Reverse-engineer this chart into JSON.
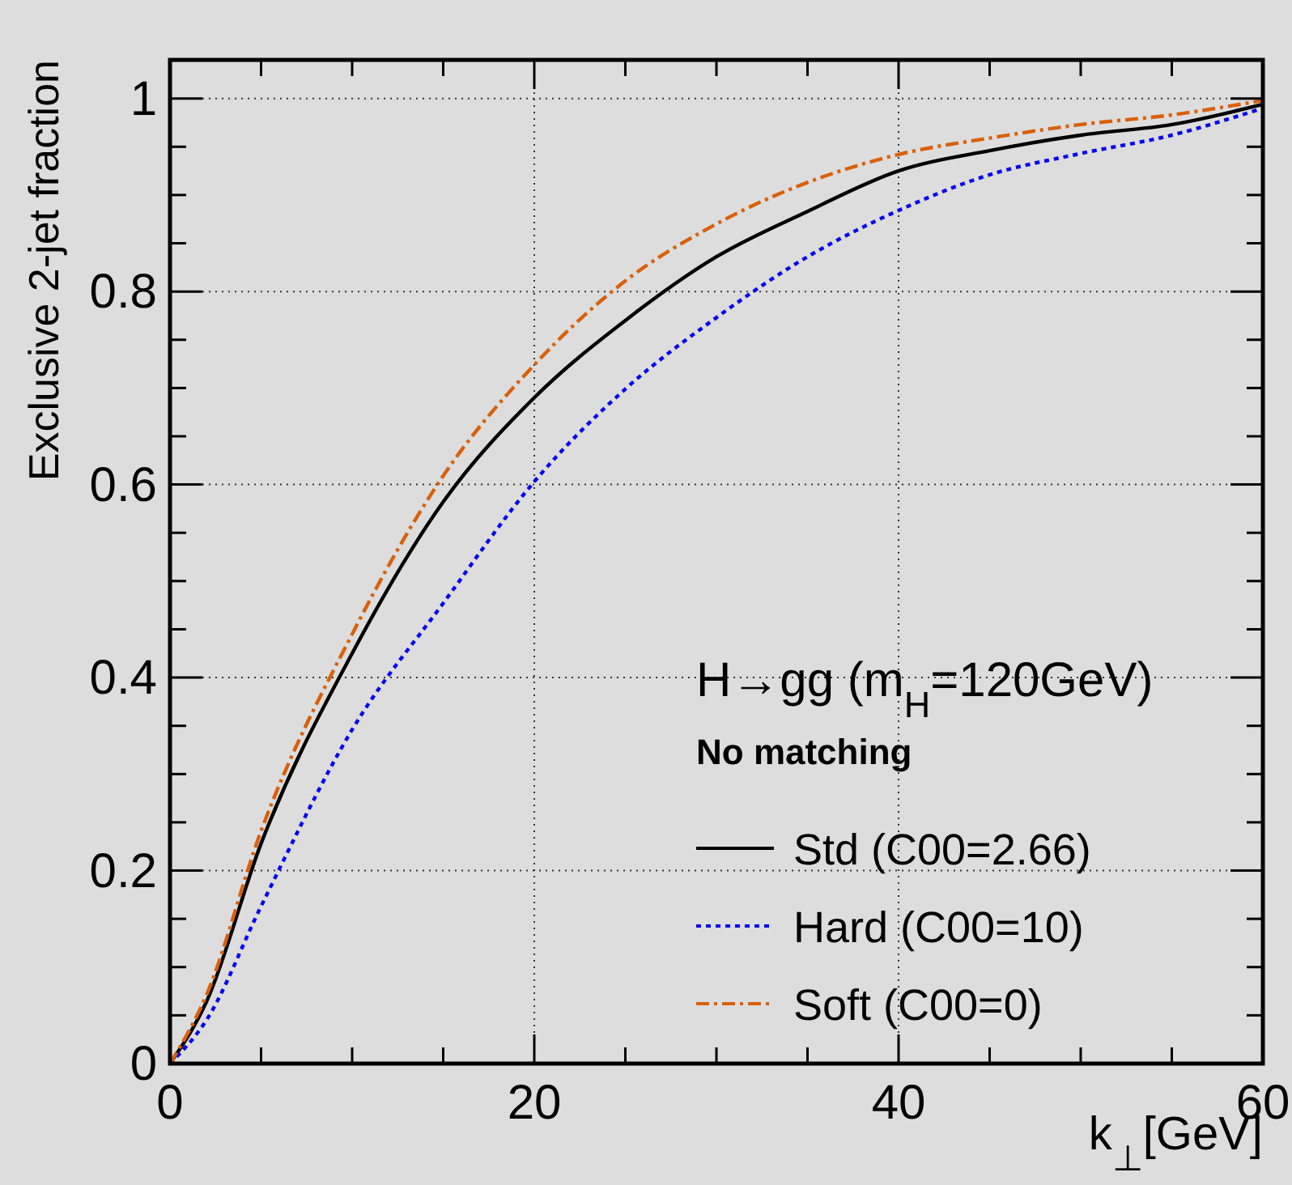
{
  "chart_data": {
    "type": "line",
    "xlabel": "k$_{⊥}$[GeV]",
    "ylabel": "Exclusive 2-jet fraction",
    "annotations": [
      "H→gg (m$_{H}$=120GeV)",
      "No matching"
    ],
    "x": [
      0,
      2,
      5,
      10,
      15,
      20,
      25,
      30,
      35,
      40,
      45,
      50,
      55,
      60
    ],
    "xlim": [
      0,
      60
    ],
    "ylim": [
      0,
      1.04
    ],
    "xticks": [
      0,
      {
        "value": 5,
        "label": null
      },
      {
        "value": 10,
        "label": null
      },
      {
        "value": 15,
        "label": null
      },
      20,
      {
        "value": 25,
        "label": null
      },
      {
        "value": 30,
        "label": null
      },
      {
        "value": 35,
        "label": null
      },
      40,
      {
        "value": 45,
        "label": null
      },
      {
        "value": 50,
        "label": null
      },
      {
        "value": 55,
        "label": null
      },
      60
    ],
    "yticks": [
      0,
      {
        "value": 0.05,
        "label": null
      },
      {
        "value": 0.1,
        "label": null
      },
      {
        "value": 0.15,
        "label": null
      },
      0.2,
      {
        "value": 0.25,
        "label": null
      },
      {
        "value": 0.3,
        "label": null
      },
      {
        "value": 0.35,
        "label": null
      },
      0.4,
      {
        "value": 0.45,
        "label": null
      },
      {
        "value": 0.5,
        "label": null
      },
      {
        "value": 0.55,
        "label": null
      },
      0.6,
      {
        "value": 0.65,
        "label": null
      },
      {
        "value": 0.7,
        "label": null
      },
      {
        "value": 0.75,
        "label": null
      },
      0.8,
      {
        "value": 0.85,
        "label": null
      },
      {
        "value": 0.9,
        "label": null
      },
      {
        "value": 0.95,
        "label": null
      },
      1
    ],
    "grid": true,
    "legend": "bottom right",
    "series": [
      {
        "name": "Std (C00=2.66)",
        "color": "#000000",
        "line_style": "solid",
        "values": [
          0,
          0.064,
          0.228,
          0.425,
          0.582,
          0.69,
          0.77,
          0.836,
          0.883,
          0.925,
          0.946,
          0.962,
          0.973,
          0.994
        ]
      },
      {
        "name": "Hard (C00=10)",
        "color": "#0000ee",
        "line_style": "dotted",
        "values": [
          0,
          0.045,
          0.163,
          0.346,
          0.477,
          0.603,
          0.699,
          0.773,
          0.836,
          0.884,
          0.921,
          0.943,
          0.962,
          0.99
        ]
      },
      {
        "name": "Soft (C00=0)",
        "color": "#d9600a",
        "line_style": "dashed",
        "values": [
          0,
          0.071,
          0.241,
          0.445,
          0.609,
          0.724,
          0.811,
          0.87,
          0.913,
          0.942,
          0.959,
          0.973,
          0.983,
          0.998
        ]
      }
    ]
  }
}
